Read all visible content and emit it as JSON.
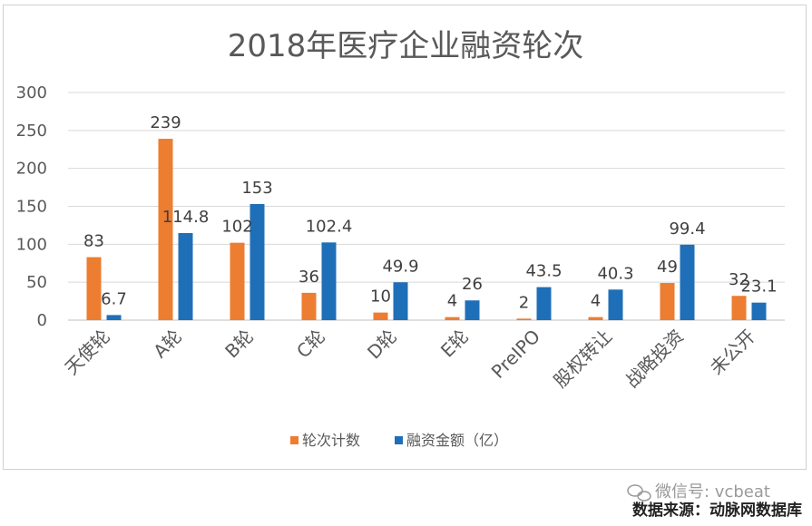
{
  "chart_data": {
    "type": "bar",
    "title": "2018年医疗企业融资轮次",
    "categories": [
      "天使轮",
      "A轮",
      "B轮",
      "C轮",
      "D轮",
      "E轮",
      "PreIPO",
      "股权转让",
      "战略投资",
      "未公开"
    ],
    "series": [
      {
        "name": "轮次计数",
        "color": "#ED7D31",
        "values": [
          83,
          239,
          102,
          36,
          10,
          4,
          2,
          4,
          49,
          32
        ],
        "labels": [
          "83",
          "239",
          "102",
          "36",
          "10",
          "4",
          "2",
          "4",
          "49",
          "32"
        ]
      },
      {
        "name": "融资金额（亿）",
        "color": "#1F6FB8",
        "values": [
          6.7,
          114.8,
          153,
          102.4,
          49.9,
          26,
          43.5,
          40.3,
          99.4,
          23.1
        ],
        "labels": [
          "6.7",
          "114.8",
          "153",
          "102.4",
          "49.9",
          "26",
          "43.5",
          "40.3",
          "99.4",
          "23.1"
        ]
      }
    ],
    "ylim": [
      0,
      300
    ],
    "yticks": [
      "0",
      "50",
      "100",
      "150",
      "200",
      "250",
      "300"
    ],
    "ytick_values": [
      0,
      50,
      100,
      150,
      200,
      250,
      300
    ],
    "grid": true,
    "legend": "bottom"
  },
  "watermark": {
    "wechat": "微信号: vcbeat",
    "source": "数据来源：动脉网数据库"
  }
}
